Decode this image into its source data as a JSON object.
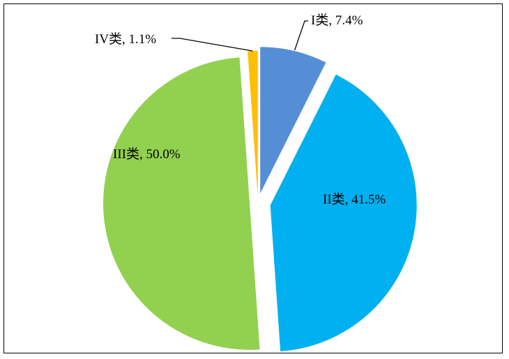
{
  "chart_data": {
    "type": "pie",
    "title": "",
    "slices": [
      {
        "name": "I类",
        "value": 7.4,
        "label": "I类, 7.4%",
        "color": "#558ED5"
      },
      {
        "name": "II类",
        "value": 41.5,
        "label": "II类, 41.5%",
        "color": "#00B0F0"
      },
      {
        "name": "III类",
        "value": 50.0,
        "label": "III类, 50.0%",
        "color": "#92D050"
      },
      {
        "name": "IV类",
        "value": 1.1,
        "label": "IV类, 1.1%",
        "color": "#FFC000"
      }
    ],
    "legend": "none",
    "exploded": true,
    "start": "top, clockwise"
  }
}
